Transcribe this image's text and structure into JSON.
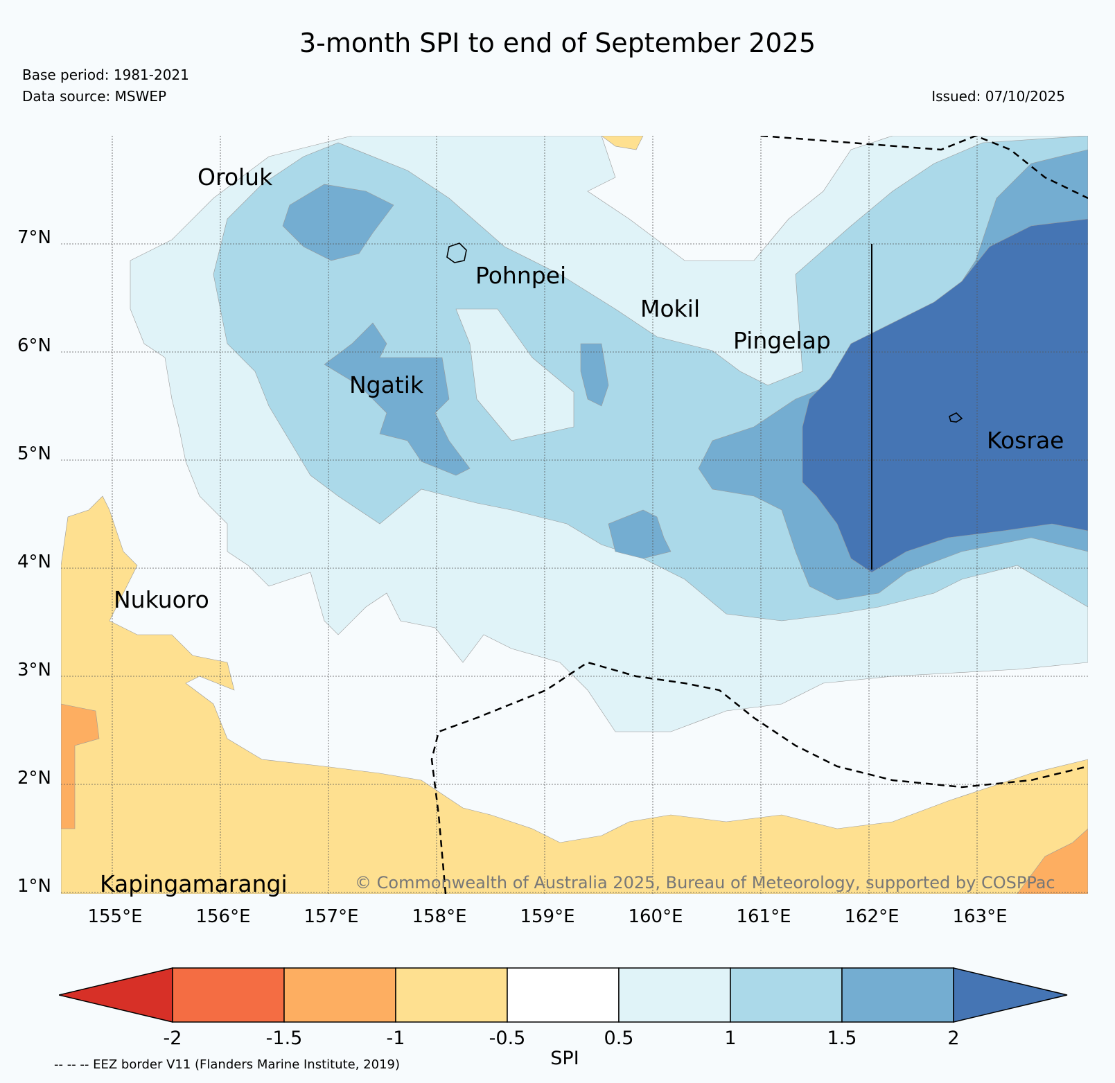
{
  "title": "3-month SPI to end of September 2025",
  "base_period": "Base period: 1981-2021",
  "data_source": "Data source: MSWEP",
  "issued": "Issued: 07/10/2025",
  "copyright": "© Commonwealth of Australia 2025, Bureau of Meteorology, supported by COSPPac",
  "eez_note": "-- -- -- EEZ border V11 (Flanders Marine Institute, 2019)",
  "map": {
    "lon_range": [
      154.5,
      164.0
    ],
    "lat_range": [
      1.0,
      8.0
    ],
    "lat_ticks": [
      "7°N",
      "6°N",
      "5°N",
      "4°N",
      "3°N",
      "2°N",
      "1°N"
    ],
    "lon_ticks": [
      "155°E",
      "156°E",
      "157°E",
      "158°E",
      "159°E",
      "160°E",
      "161°E",
      "162°E",
      "163°E"
    ],
    "places": [
      {
        "name": "Oroluk",
        "lon": 155.7,
        "lat": 7.6
      },
      {
        "name": "Pohnpei",
        "lon": 158.3,
        "lat": 6.8
      },
      {
        "name": "Mokil",
        "lon": 159.8,
        "lat": 6.4
      },
      {
        "name": "Pingelap",
        "lon": 160.7,
        "lat": 6.1
      },
      {
        "name": "Ngatik",
        "lon": 157.2,
        "lat": 5.8
      },
      {
        "name": "Kosrae",
        "lon": 163.0,
        "lat": 5.3
      },
      {
        "name": "Nukuoro",
        "lon": 154.8,
        "lat": 3.8
      },
      {
        "name": "Kapingamarangi",
        "lon": 154.8,
        "lat": 1.1
      }
    ]
  },
  "colorbar": {
    "label": "SPI",
    "ticks": [
      "-2",
      "-1.5",
      "-1",
      "-0.5",
      "0.5",
      "1",
      "1.5",
      "2"
    ],
    "colors": [
      "#d73027",
      "#f46d43",
      "#fdae61",
      "#fee090",
      "#f7fbfd",
      "#e0f3f8",
      "#abd9e9",
      "#74add1",
      "#4575b4"
    ]
  }
}
